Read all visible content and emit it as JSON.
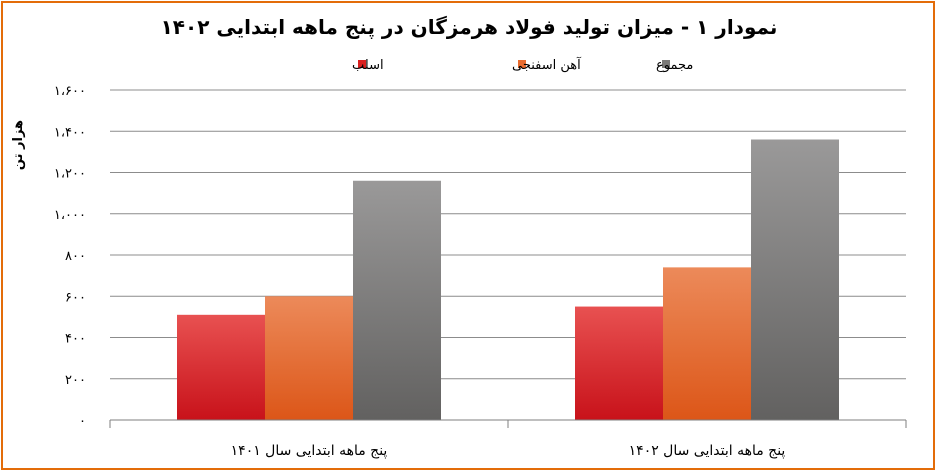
{
  "chart_data": {
    "type": "bar",
    "title": "نمودار ۱ - میزان تولید فولاد هرمزگان در پنج ماهه ابتدایی ۱۴۰۲",
    "ylabel": "هزار تن",
    "xlabel": "",
    "categories": [
      "پنج ماهه ابتدایی سال ۱۴۰۱",
      "پنج ماهه ابتدایی سال ۱۴۰۲"
    ],
    "series": [
      {
        "name": "اسلب",
        "values": [
          510,
          550
        ],
        "color": "#d9201f"
      },
      {
        "name": "آهن اسفنجی",
        "values": [
          600,
          740
        ],
        "color": "#e96c2f"
      },
      {
        "name": "مجموع",
        "values": [
          1160,
          1360
        ],
        "color": "#7a7977"
      }
    ],
    "ylim": [
      0,
      1600
    ],
    "yticks": [
      0,
      200,
      400,
      600,
      800,
      1000,
      1200,
      1400,
      1600
    ],
    "ytick_labels": [
      "۰",
      "۲۰۰",
      "۴۰۰",
      "۶۰۰",
      "۸۰۰",
      "۱،۰۰۰",
      "۱،۲۰۰",
      "۱،۴۰۰",
      "۱،۶۰۰"
    ],
    "grid": true,
    "legend_position": "top"
  },
  "colors": {
    "frame_border": "#e36c09",
    "gridline": "#8c8c8c"
  }
}
